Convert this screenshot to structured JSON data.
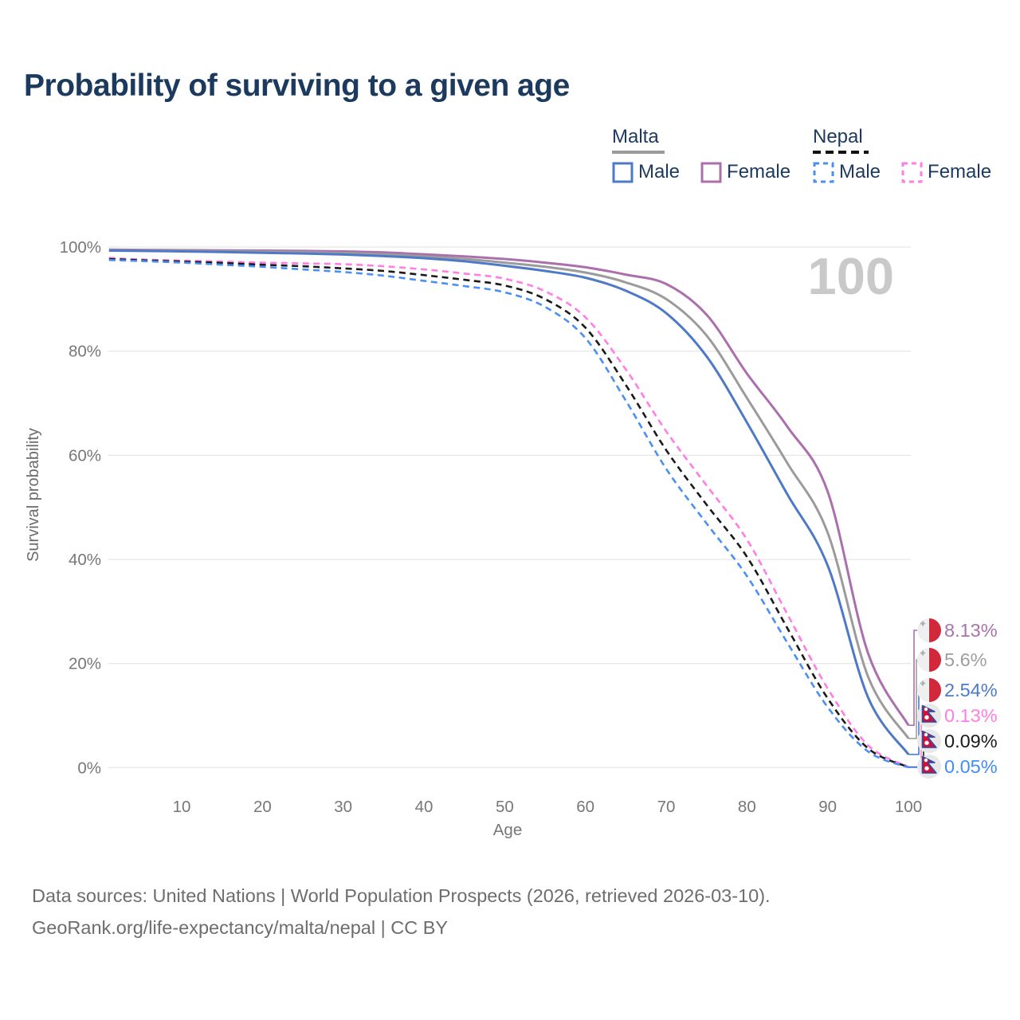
{
  "title": "Probability of surviving to a given age",
  "watermark": "100",
  "legend": {
    "groups": [
      {
        "label": "Malta",
        "underline_style": "solid",
        "underline_color": "#9b9b9b",
        "items": [
          {
            "label": "Male",
            "color": "#4e79c7",
            "dash": false
          },
          {
            "label": "Female",
            "color": "#ab6fad",
            "dash": false
          }
        ]
      },
      {
        "label": "Nepal",
        "underline_style": "dashed",
        "underline_color": "#111111",
        "items": [
          {
            "label": "Male",
            "color": "#4a90f4",
            "dash": true
          },
          {
            "label": "Female",
            "color": "#ff7ee3",
            "dash": true
          }
        ]
      }
    ]
  },
  "axes": {
    "x": {
      "title": "Age",
      "min": 1,
      "max": 100,
      "ticks": [
        10,
        20,
        30,
        40,
        50,
        60,
        70,
        80,
        90,
        100
      ]
    },
    "y": {
      "title": "Survival probability",
      "min": 0,
      "max": 100,
      "ticks": [
        {
          "label": "0%",
          "value": 0
        },
        {
          "label": "20%",
          "value": 20
        },
        {
          "label": "40%",
          "value": 40
        },
        {
          "label": "60%",
          "value": 60
        },
        {
          "label": "80%",
          "value": 80
        },
        {
          "label": "100%",
          "value": 100
        }
      ]
    }
  },
  "chart_data": {
    "type": "line",
    "title": "Probability of surviving to a given age",
    "xlabel": "Age",
    "ylabel": "Survival probability",
    "xlim": [
      1,
      100
    ],
    "ylim": [
      0,
      100
    ],
    "grid": true,
    "legend_position": "top-right",
    "x": [
      1,
      5,
      10,
      15,
      20,
      25,
      30,
      35,
      40,
      45,
      50,
      55,
      60,
      65,
      70,
      75,
      80,
      85,
      90,
      95,
      100
    ],
    "series": [
      {
        "name": "Malta Female",
        "country": "Malta",
        "sex": "Female",
        "color": "#ab6fad",
        "dash": false,
        "end_label": {
          "text": "8.13%",
          "color": "#a872aa"
        },
        "values": [
          99.5,
          99.45,
          99.4,
          99.35,
          99.3,
          99.25,
          99.15,
          98.95,
          98.6,
          98.2,
          97.7,
          97.0,
          96.1,
          94.7,
          92.9,
          87.0,
          75.7,
          65.5,
          53.0,
          22.0,
          8.13
        ]
      },
      {
        "name": "Malta (both sexes)",
        "country": "Malta",
        "sex": "Both",
        "color": "#9b9b9b",
        "dash": false,
        "end_label": {
          "text": "5.6%",
          "color": "#9e9e9e"
        },
        "values": [
          99.4,
          99.35,
          99.3,
          99.2,
          99.1,
          99.0,
          98.85,
          98.6,
          98.2,
          97.7,
          97.0,
          96.2,
          95.1,
          93.2,
          90.0,
          83.0,
          71.0,
          58.5,
          45.1,
          17.5,
          5.6
        ]
      },
      {
        "name": "Malta Male",
        "country": "Malta",
        "sex": "Male",
        "color": "#4e79c7",
        "dash": false,
        "end_label": {
          "text": "2.54%",
          "color": "#4b7bc8"
        },
        "values": [
          99.3,
          99.25,
          99.15,
          99.05,
          98.9,
          98.75,
          98.55,
          98.25,
          97.85,
          97.25,
          96.4,
          95.4,
          94.1,
          91.6,
          87.3,
          79.0,
          66.3,
          52.5,
          38.8,
          13.5,
          2.54
        ]
      },
      {
        "name": "Nepal Female",
        "country": "Nepal",
        "sex": "Female",
        "color": "#ff7ee3",
        "dash": true,
        "end_label": {
          "text": "0.13%",
          "color": "#ff7ee3"
        },
        "values": [
          97.9,
          97.6,
          97.4,
          97.2,
          97.0,
          96.85,
          96.7,
          96.3,
          95.7,
          94.9,
          93.9,
          91.5,
          86.5,
          76.5,
          64.6,
          54.2,
          43.8,
          29.5,
          15.2,
          4.3,
          0.13
        ]
      },
      {
        "name": "Nepal (both sexes)",
        "country": "Nepal",
        "sex": "Both",
        "color": "#1a1a1a",
        "dash": true,
        "end_label": {
          "text": "0.09%",
          "color": "#1a1a1a"
        },
        "values": [
          97.7,
          97.45,
          97.2,
          96.95,
          96.6,
          96.3,
          95.9,
          95.4,
          94.6,
          93.7,
          92.6,
          90.0,
          84.5,
          73.5,
          61.0,
          50.5,
          40.5,
          26.8,
          13.3,
          3.7,
          0.09
        ]
      },
      {
        "name": "Nepal Male",
        "country": "Nepal",
        "sex": "Male",
        "color": "#4a90f4",
        "dash": true,
        "end_label": {
          "text": "0.05%",
          "color": "#418df5"
        },
        "values": [
          97.5,
          97.3,
          97.0,
          96.6,
          96.2,
          95.7,
          95.2,
          94.5,
          93.5,
          92.5,
          91.3,
          88.5,
          82.5,
          70.5,
          57.4,
          46.9,
          36.8,
          24.0,
          11.6,
          3.1,
          0.05
        ]
      }
    ]
  },
  "footer": {
    "line1": "Data sources: United Nations | World Population Prospects (2026, retrieved 2026-03-10).",
    "line2": "GeoRank.org/life-expectancy/malta/nepal | CC BY"
  },
  "palette": {
    "title_text": "#1c3a5e",
    "axis_text": "#777777",
    "grid": "#e7e7e7",
    "watermark": "#c9c9c9",
    "footer_text": "#6d6d6d",
    "malta_flag_red": "#d2283c",
    "nepal_flag_crimson": "#d0103a",
    "nepal_flag_blue": "#2b4ba0"
  }
}
